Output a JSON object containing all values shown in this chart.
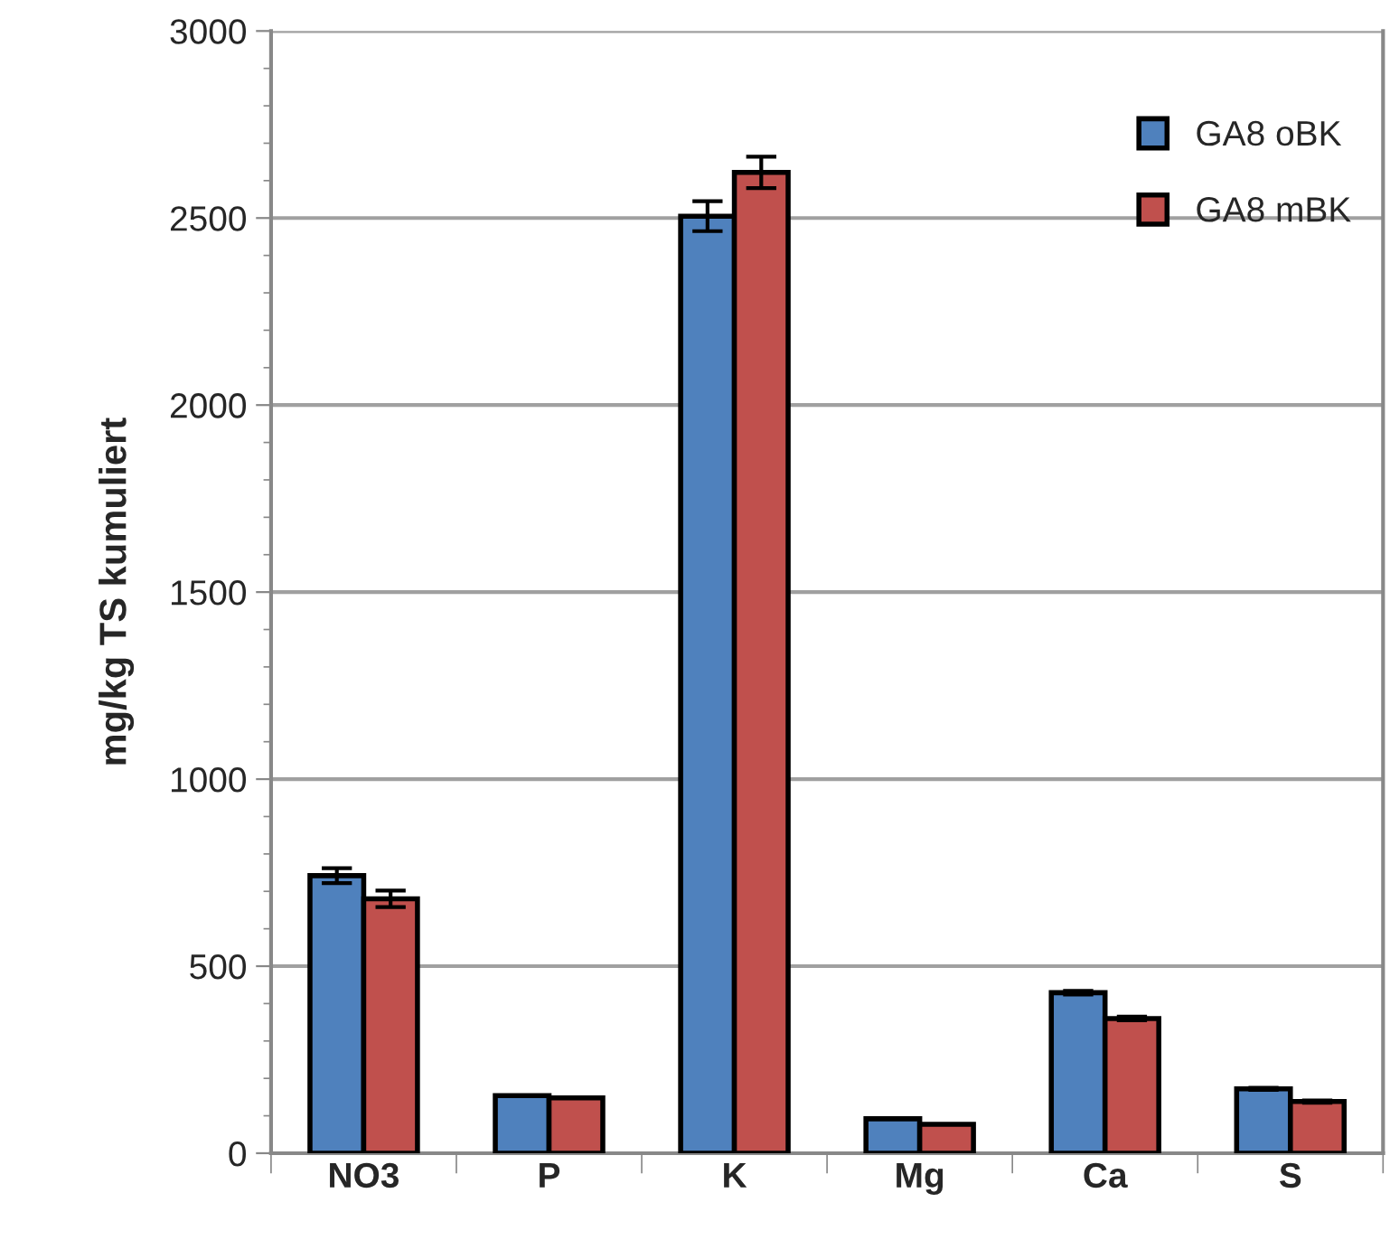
{
  "chart_data": {
    "type": "bar",
    "ylabel": "mg/kg TS kumuliert",
    "categories": [
      "NO3",
      "P",
      "K",
      "Mg",
      "Ca",
      "S"
    ],
    "series": [
      {
        "name": "GA8 oBK",
        "color": "#4f81bd",
        "values": [
          742,
          154,
          2505,
          92,
          429,
          172
        ],
        "errors": [
          20,
          null,
          40,
          null,
          5,
          3
        ]
      },
      {
        "name": "GA8 mBK",
        "color": "#c0504d",
        "values": [
          680,
          148,
          2622,
          77,
          360,
          138
        ],
        "errors": [
          22,
          null,
          42,
          null,
          5,
          3
        ]
      }
    ],
    "ylim": [
      0,
      3000
    ],
    "yticks": [
      0,
      500,
      1000,
      1500,
      2000,
      2500,
      3000
    ],
    "grid": "y",
    "legend": "top right"
  }
}
